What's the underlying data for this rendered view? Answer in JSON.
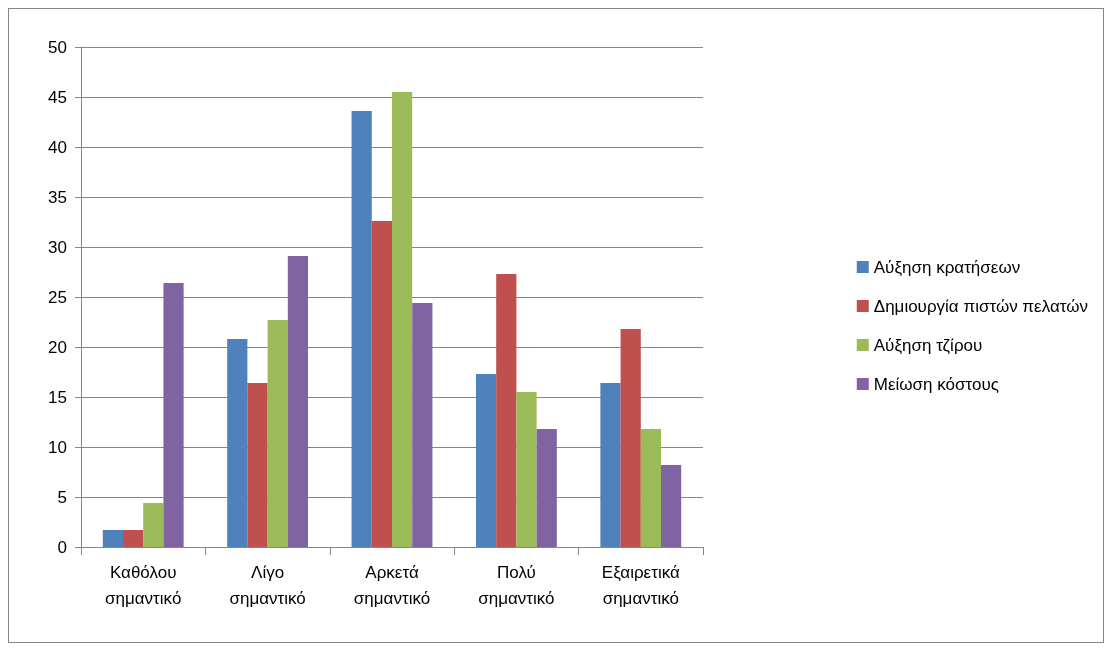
{
  "chart_data": {
    "type": "bar",
    "categories": [
      "Καθόλου σημαντικό",
      "Λίγο σημαντικό",
      "Αρκετά σημαντικό",
      "Πολύ σημαντικό",
      "Εξαιρετικά σημαντικό"
    ],
    "series": [
      {
        "name": "Αύξηση κρατήσεων",
        "color": "#4f81bd",
        "values": [
          1.7,
          20.8,
          43.6,
          17.3,
          16.4
        ]
      },
      {
        "name": "Δημιουργία πιστών πελατών",
        "color": "#c0504d",
        "values": [
          1.7,
          16.4,
          32.6,
          27.3,
          21.8
        ]
      },
      {
        "name": "Αύξηση τζίρου",
        "color": "#9bbb59",
        "values": [
          4.4,
          22.7,
          45.5,
          15.5,
          11.8
        ]
      },
      {
        "name": "Μείωση κόστους",
        "color": "#8064a2",
        "values": [
          26.4,
          29.1,
          24.4,
          11.8,
          8.2
        ]
      }
    ],
    "ylim": [
      0,
      50
    ],
    "yticks": [
      0,
      5,
      10,
      15,
      20,
      25,
      30,
      35,
      40,
      45,
      50
    ],
    "grid": "y",
    "legend": "right"
  }
}
